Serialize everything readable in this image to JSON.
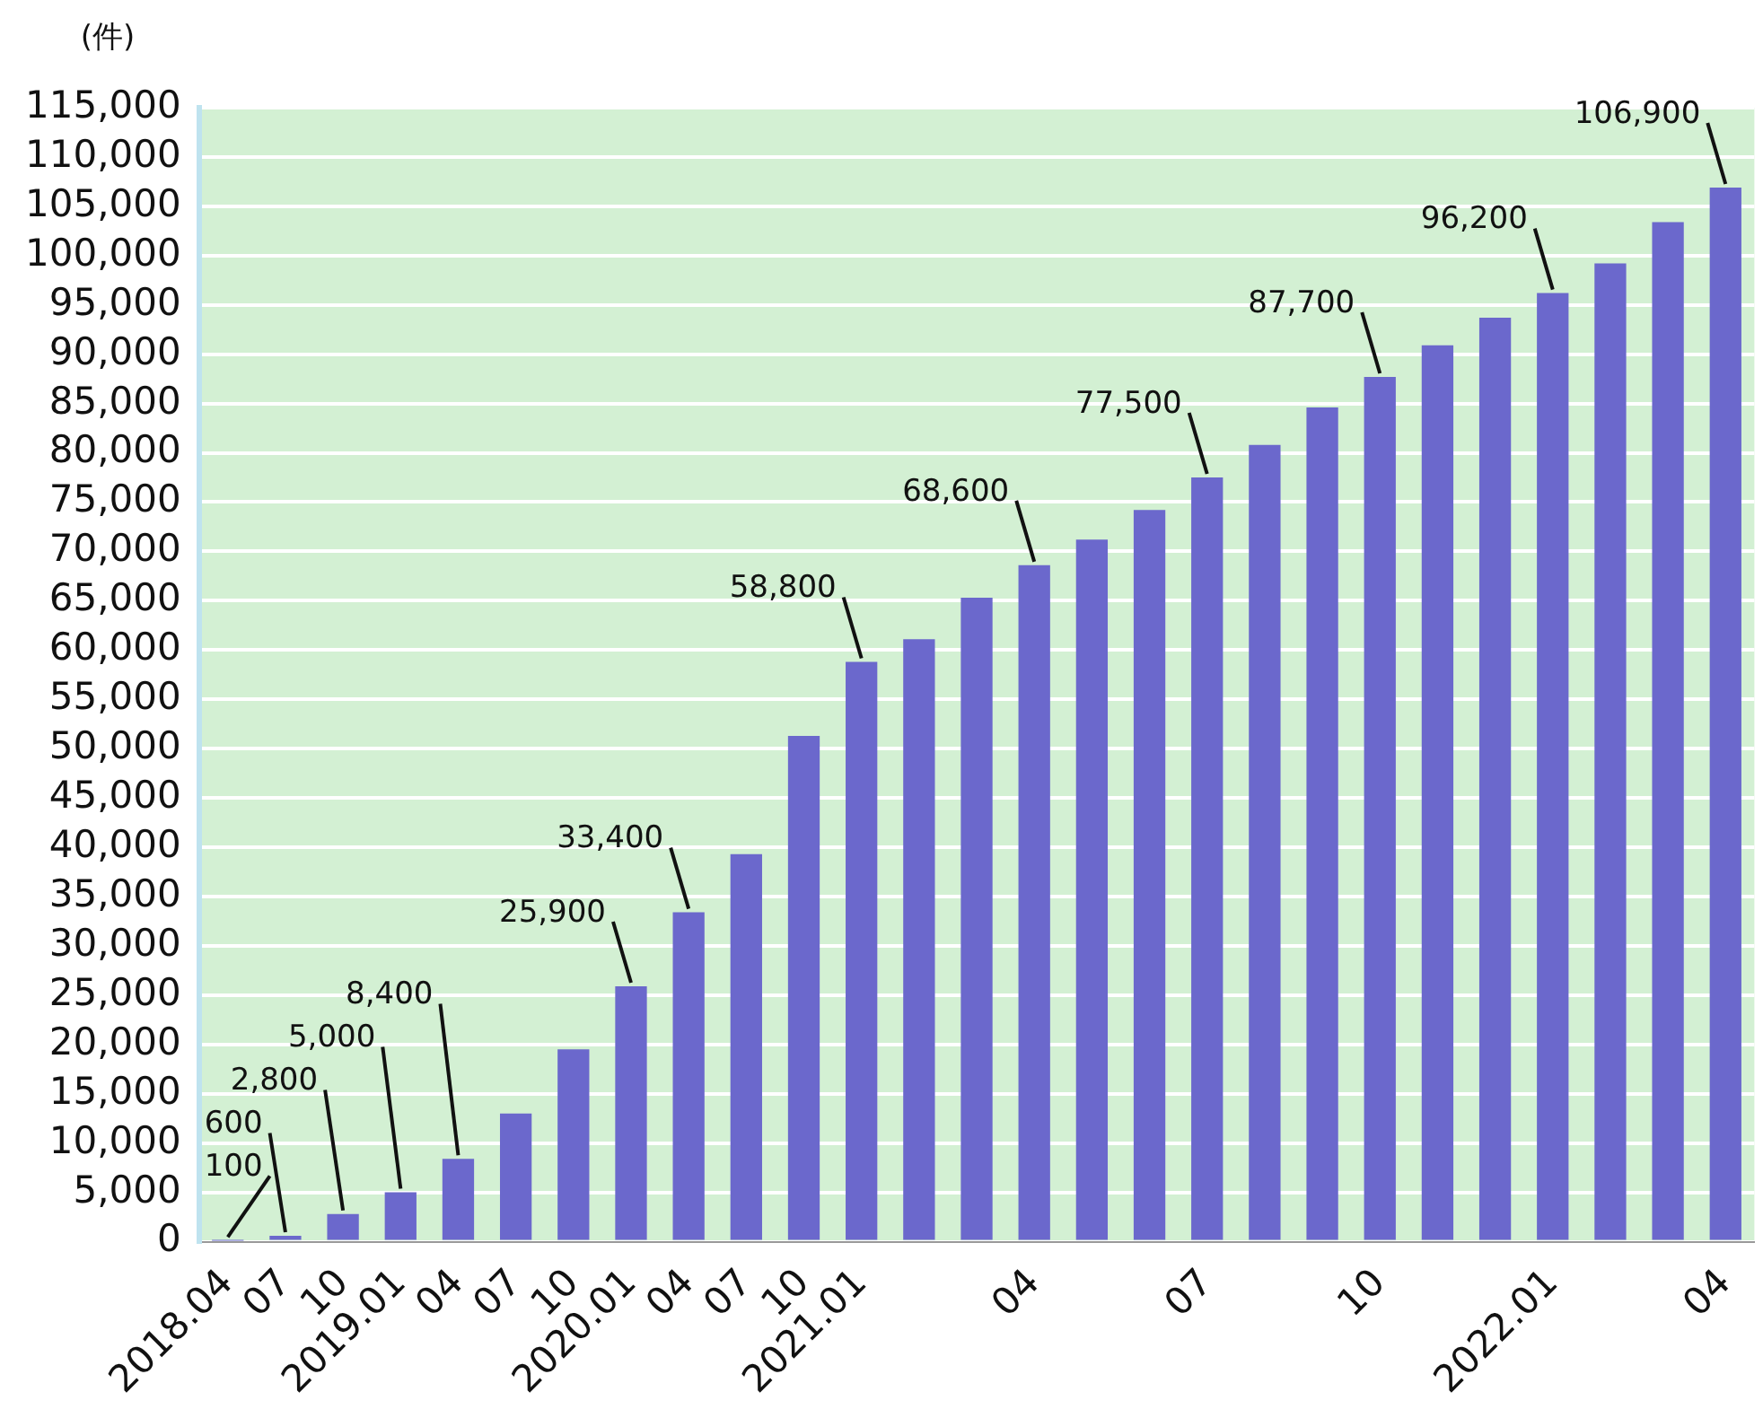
{
  "chart_data": {
    "type": "bar",
    "ylabel": "(件)",
    "categories": [
      "2018.04",
      "07",
      "10",
      "2019.01",
      "04",
      "07",
      "10",
      "2020.01",
      "04",
      "07",
      "10",
      "2021.01",
      null,
      null,
      "04",
      null,
      null,
      "07",
      null,
      null,
      "10",
      null,
      null,
      "2022.01",
      null,
      null,
      "04"
    ],
    "values": [
      100,
      600,
      2800,
      5000,
      8400,
      13000,
      19500,
      25900,
      33400,
      39300,
      51300,
      58800,
      61100,
      65300,
      68600,
      71200,
      74200,
      77500,
      80800,
      84600,
      87700,
      90900,
      93700,
      96200,
      99200,
      103400,
      106900
    ],
    "value_labels": [
      "100",
      "600",
      "2,800",
      "5,000",
      "8,400",
      null,
      null,
      "25,900",
      "33,400",
      null,
      null,
      "58,800",
      null,
      null,
      "68,600",
      null,
      null,
      "77,500",
      null,
      null,
      "87,700",
      null,
      null,
      "96,200",
      null,
      null,
      "106,900"
    ],
    "color": "#6b68cc",
    "ylim": [
      0,
      115000
    ],
    "yticks": [
      0,
      {
        "value": 5000,
        "label": "5,000"
      },
      {
        "value": 10000,
        "label": "10,000"
      },
      {
        "value": 15000,
        "label": "15,000"
      },
      {
        "value": 20000,
        "label": "20,000"
      },
      {
        "value": 25000,
        "label": "25,000"
      },
      {
        "value": 30000,
        "label": "30,000"
      },
      {
        "value": 35000,
        "label": "35,000"
      },
      {
        "value": 40000,
        "label": "40,000"
      },
      {
        "value": 45000,
        "label": "45,000"
      },
      {
        "value": 50000,
        "label": "50,000"
      },
      {
        "value": 55000,
        "label": "55,000"
      },
      {
        "value": 60000,
        "label": "60,000"
      },
      {
        "value": 65000,
        "label": "65,000"
      },
      {
        "value": 70000,
        "label": "70,000"
      },
      {
        "value": 75000,
        "label": "75,000"
      },
      {
        "value": 80000,
        "label": "80,000"
      },
      {
        "value": 85000,
        "label": "85,000"
      },
      {
        "value": 90000,
        "label": "90,000"
      },
      {
        "value": 95000,
        "label": "95,000"
      },
      {
        "value": 100000,
        "label": "100,000"
      },
      {
        "value": 105000,
        "label": "105,000"
      },
      {
        "value": 110000,
        "label": "110,000"
      },
      {
        "value": 115000,
        "label": "115,000"
      }
    ],
    "grid": "y"
  }
}
